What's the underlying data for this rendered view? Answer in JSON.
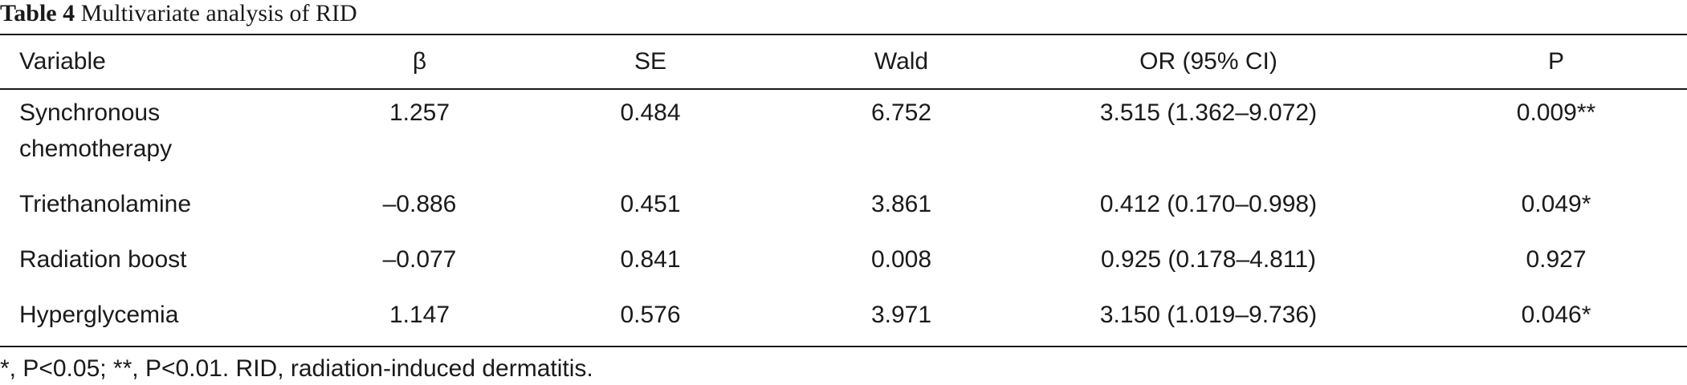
{
  "caption": {
    "label": "Table 4",
    "title": "Multivariate analysis of RID"
  },
  "table": {
    "headers": [
      "Variable",
      "β",
      "SE",
      "Wald",
      "OR (95% CI)",
      "P"
    ],
    "rows": [
      {
        "variable_line1": "Synchronous",
        "variable_line2": "chemotherapy",
        "beta": "1.257",
        "se": "0.484",
        "wald": "6.752",
        "or_ci": "3.515 (1.362–9.072)",
        "p": "0.009**"
      },
      {
        "variable": "Triethanolamine",
        "beta": "–0.886",
        "se": "0.451",
        "wald": "3.861",
        "or_ci": "0.412 (0.170–0.998)",
        "p": "0.049*"
      },
      {
        "variable": "Radiation boost",
        "beta": "–0.077",
        "se": "0.841",
        "wald": "0.008",
        "or_ci": "0.925 (0.178–4.811)",
        "p": "0.927"
      },
      {
        "variable": "Hyperglycemia",
        "beta": "1.147",
        "se": "0.576",
        "wald": "3.971",
        "or_ci": "3.150 (1.019–9.736)",
        "p": "0.046*"
      }
    ]
  },
  "footnote": "*, P<0.05; **, P<0.01. RID, radiation-induced dermatitis."
}
